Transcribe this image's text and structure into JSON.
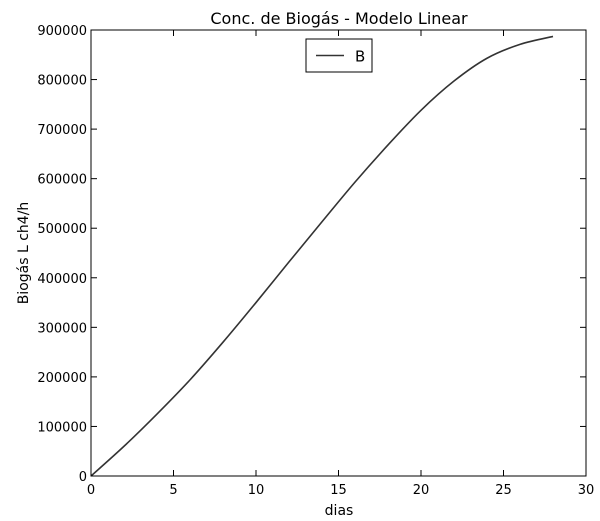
{
  "chart_data": {
    "type": "line",
    "title": "Conc. de Biogás - Modelo Linear",
    "xlabel": "dias",
    "ylabel": "Biogás L ch4/h",
    "xlim": [
      0,
      30
    ],
    "ylim": [
      0,
      900000
    ],
    "xticks": [
      0,
      5,
      10,
      15,
      20,
      25,
      30
    ],
    "yticks": [
      0,
      100000,
      200000,
      300000,
      400000,
      500000,
      600000,
      700000,
      800000,
      900000
    ],
    "grid": false,
    "legend_position": "upper center",
    "series": [
      {
        "name": "B",
        "color": "#333333",
        "x": [
          0,
          2,
          4,
          6,
          8,
          10,
          12,
          14,
          16,
          18,
          20,
          22,
          24,
          26,
          28
        ],
        "y": [
          0,
          60000,
          125000,
          194000,
          270000,
          350000,
          432000,
          513000,
          593000,
          668000,
          738000,
          797000,
          843000,
          871000,
          887000
        ]
      }
    ]
  }
}
